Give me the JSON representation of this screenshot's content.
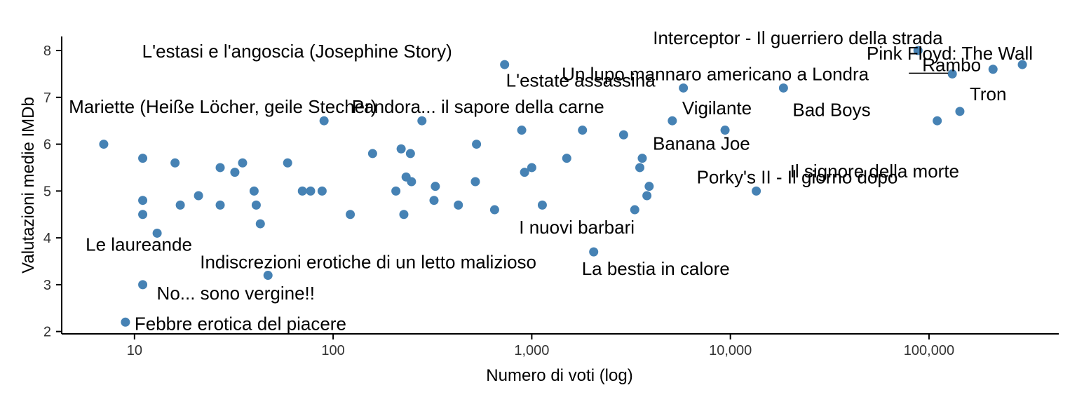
{
  "chart_data": {
    "type": "scatter",
    "title": "",
    "xlabel": "Numero di voti (log)",
    "ylabel": "Valutazioni medie IMDb",
    "x_scale": "log10",
    "xlim": [
      4.3,
      450000
    ],
    "ylim": [
      1.95,
      8.3
    ],
    "x_ticks": [
      {
        "value": 10,
        "label": "10"
      },
      {
        "value": 100,
        "label": "100"
      },
      {
        "value": 1000,
        "label": "1,000"
      },
      {
        "value": 10000,
        "label": "10,000"
      },
      {
        "value": 100000,
        "label": "100,000"
      }
    ],
    "y_ticks": [
      {
        "value": 2,
        "label": "2"
      },
      {
        "value": 3,
        "label": "3"
      },
      {
        "value": 4,
        "label": "4"
      },
      {
        "value": 5,
        "label": "5"
      },
      {
        "value": 6,
        "label": "6"
      },
      {
        "value": 7,
        "label": "7"
      },
      {
        "value": 8,
        "label": "8"
      }
    ],
    "grid": false,
    "point_color": "#4682B4",
    "points": [
      {
        "x": 7,
        "y": 6.0
      },
      {
        "x": 11,
        "y": 5.7
      },
      {
        "x": 11,
        "y": 4.8
      },
      {
        "x": 11,
        "y": 4.5
      },
      {
        "x": 13,
        "y": 4.1,
        "label": "Le laureande"
      },
      {
        "x": 11,
        "y": 3.0,
        "label": "No... sono vergine!!"
      },
      {
        "x": 9,
        "y": 2.2,
        "label": "Febbre erotica del piacere"
      },
      {
        "x": 16,
        "y": 5.6
      },
      {
        "x": 17,
        "y": 4.7
      },
      {
        "x": 21,
        "y": 4.9
      },
      {
        "x": 27,
        "y": 5.5
      },
      {
        "x": 27,
        "y": 4.7
      },
      {
        "x": 32,
        "y": 5.4
      },
      {
        "x": 35,
        "y": 5.6
      },
      {
        "x": 40,
        "y": 5.0
      },
      {
        "x": 41,
        "y": 4.7
      },
      {
        "x": 43,
        "y": 4.3
      },
      {
        "x": 47,
        "y": 3.2,
        "label": "Indiscrezioni erotiche di un letto malizioso"
      },
      {
        "x": 59,
        "y": 5.6
      },
      {
        "x": 70,
        "y": 5.0
      },
      {
        "x": 77,
        "y": 5.0
      },
      {
        "x": 88,
        "y": 5.0
      },
      {
        "x": 90,
        "y": 6.5,
        "label": "Mariette (Heiße Löcher, geile Stecher)"
      },
      {
        "x": 122,
        "y": 4.5
      },
      {
        "x": 158,
        "y": 5.8
      },
      {
        "x": 207,
        "y": 5.0
      },
      {
        "x": 220,
        "y": 5.9
      },
      {
        "x": 227,
        "y": 4.5
      },
      {
        "x": 233,
        "y": 5.3
      },
      {
        "x": 245,
        "y": 5.8
      },
      {
        "x": 248,
        "y": 5.2
      },
      {
        "x": 280,
        "y": 6.5,
        "label": "Pandora... il sapore della carne"
      },
      {
        "x": 322,
        "y": 4.8
      },
      {
        "x": 327,
        "y": 5.1
      },
      {
        "x": 427,
        "y": 4.7
      },
      {
        "x": 520,
        "y": 5.2
      },
      {
        "x": 527,
        "y": 6.0
      },
      {
        "x": 650,
        "y": 4.6
      },
      {
        "x": 730,
        "y": 7.7,
        "label": "L'estasi e l'angoscia (Josephine Story)"
      },
      {
        "x": 890,
        "y": 6.3
      },
      {
        "x": 920,
        "y": 5.4
      },
      {
        "x": 1000,
        "y": 5.5
      },
      {
        "x": 1130,
        "y": 4.7
      },
      {
        "x": 1500,
        "y": 5.7
      },
      {
        "x": 1800,
        "y": 6.3
      },
      {
        "x": 2050,
        "y": 3.7,
        "label": "La bestia in calore"
      },
      {
        "x": 2900,
        "y": 6.2
      },
      {
        "x": 3300,
        "y": 4.6,
        "label": "I nuovi barbari"
      },
      {
        "x": 3500,
        "y": 5.5
      },
      {
        "x": 3600,
        "y": 5.7,
        "label": "Banana Joe"
      },
      {
        "x": 3800,
        "y": 4.9
      },
      {
        "x": 3900,
        "y": 5.1
      },
      {
        "x": 5100,
        "y": 6.5,
        "label": "Vigilante"
      },
      {
        "x": 5800,
        "y": 7.2,
        "label": "L'estate assassina"
      },
      {
        "x": 9400,
        "y": 6.3
      },
      {
        "x": 13500,
        "y": 5.0,
        "label": "Porky's II - Il giorno dopo"
      },
      {
        "x": 18500,
        "y": 7.2,
        "label": "Bad Boys"
      },
      {
        "x": 88000,
        "y": 8.0,
        "label": "Interceptor - Il guerriero della strada"
      },
      {
        "x": 110000,
        "y": 6.5,
        "label": "Il signore della morte"
      },
      {
        "x": 131000,
        "y": 7.5,
        "label": "Un lupo mannaro americano a Londra"
      },
      {
        "x": 143000,
        "y": 6.7,
        "label": "Tron"
      },
      {
        "x": 210000,
        "y": 7.6,
        "label": "Rambo"
      },
      {
        "x": 295000,
        "y": 7.7,
        "label": "Pink Floyd: The Wall"
      }
    ]
  }
}
